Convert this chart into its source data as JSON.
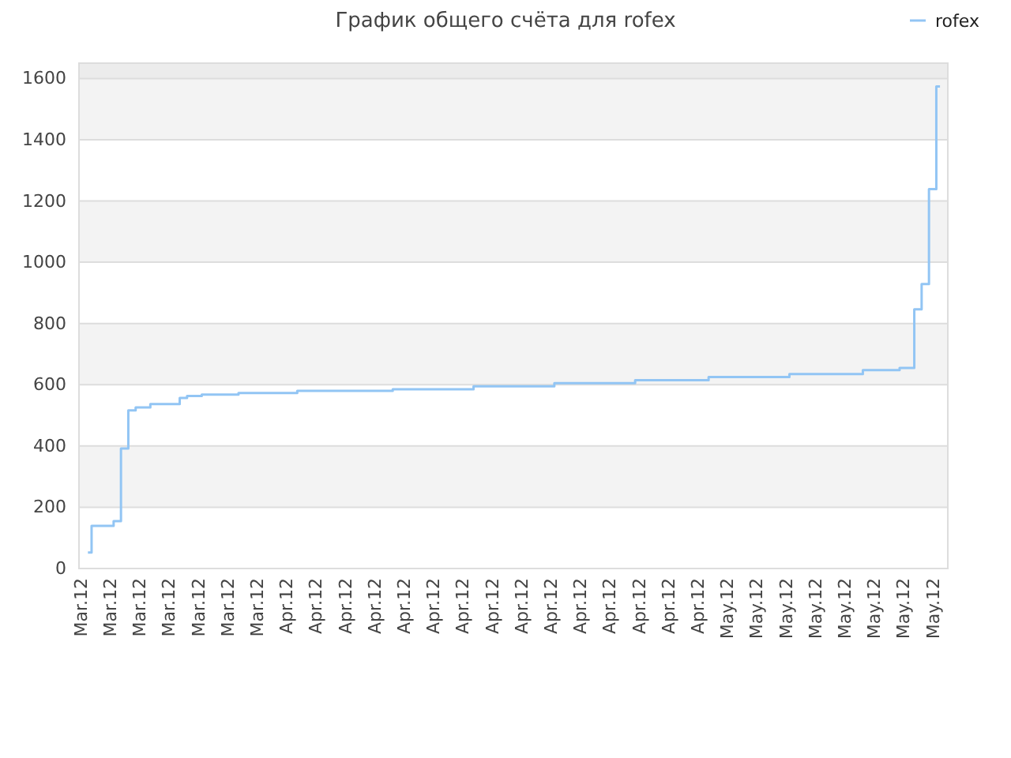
{
  "chart_data": {
    "type": "step",
    "title": "График общего счёта для rofex",
    "categories": [
      "Mar.12",
      null,
      null,
      null,
      "Mar.12",
      null,
      null,
      null,
      "Mar.12",
      null,
      null,
      null,
      "Mar.12",
      null,
      null,
      null,
      "Mar.12",
      null,
      null,
      null,
      "Mar.12",
      null,
      null,
      null,
      "Mar.12",
      null,
      null,
      null,
      "Apr.12",
      null,
      null,
      null,
      "Apr.12",
      null,
      null,
      null,
      "Apr.12",
      null,
      null,
      null,
      "Apr.12",
      null,
      null,
      null,
      "Apr.12",
      null,
      null,
      null,
      "Apr.12",
      null,
      null,
      null,
      "Apr.12",
      null,
      null,
      null,
      "Apr.12",
      null,
      null,
      null,
      "Apr.12",
      null,
      null,
      null,
      "Apr.12",
      null,
      null,
      null,
      "Apr.12",
      null,
      null,
      null,
      "Apr.12",
      null,
      null,
      null,
      "Apr.12",
      null,
      null,
      null,
      "Apr.12",
      null,
      null,
      null,
      "Apr.12",
      null,
      null,
      null,
      "May.12",
      null,
      null,
      null,
      "May.12",
      null,
      null,
      null,
      "May.12",
      null,
      null,
      null,
      "May.12",
      null,
      null,
      null,
      "May.12",
      null,
      null,
      null,
      "May.12",
      null,
      null,
      null,
      "May.12",
      null,
      null,
      null,
      "May.12",
      null,
      null
    ],
    "series": [
      {
        "name": "rofex",
        "color": "#92c5f4",
        "values": [
          null,
          52,
          139,
          139,
          139,
          155,
          392,
          516,
          526,
          526,
          537,
          537,
          537,
          537,
          557,
          563,
          563,
          568,
          568,
          568,
          568,
          568,
          573,
          573,
          573,
          573,
          573,
          573,
          573,
          573,
          580,
          580,
          580,
          580,
          580,
          580,
          580,
          580,
          580,
          580,
          580,
          580,
          580,
          585,
          585,
          585,
          585,
          585,
          585,
          585,
          585,
          585,
          585,
          585,
          595,
          595,
          595,
          595,
          595,
          595,
          595,
          595,
          595,
          595,
          595,
          605,
          605,
          605,
          605,
          605,
          605,
          605,
          605,
          605,
          605,
          605,
          615,
          615,
          615,
          615,
          615,
          615,
          615,
          615,
          615,
          615,
          625,
          625,
          625,
          625,
          625,
          625,
          625,
          625,
          625,
          625,
          625,
          635,
          635,
          635,
          635,
          635,
          635,
          635,
          635,
          635,
          635,
          648,
          648,
          648,
          648,
          648,
          655,
          655,
          846,
          929,
          1239,
          1574,
          null
        ]
      }
    ],
    "ylim": [
      0,
      1650
    ],
    "yticks": [
      0,
      200,
      400,
      600,
      800,
      1000,
      1200,
      1400,
      1600
    ],
    "grid": "y",
    "legend": "top right",
    "marker": "none",
    "line_style": "solid"
  }
}
